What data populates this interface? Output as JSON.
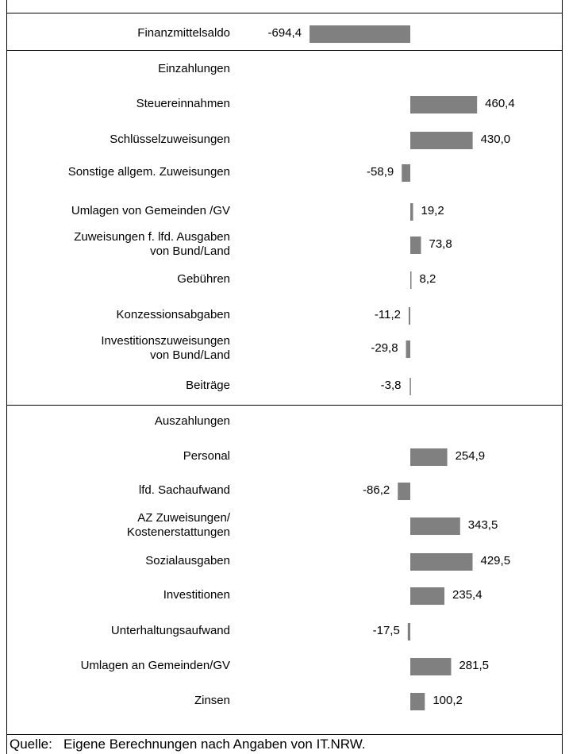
{
  "chart_data": {
    "type": "bar",
    "orientation": "horizontal",
    "color": "#808080",
    "categories": [
      "Finanzmittelsaldo",
      "Einzahlungen",
      "Steuereinnahmen",
      "Schlüsselzuweisungen",
      "Sonstige allgem. Zuweisungen",
      "Umlagen von Gemeinden /GV",
      "Zuweisungen f. lfd. Ausgaben\nvon Bund/Land",
      "Gebühren",
      "Konzessionsabgaben",
      "Investitionszuweisungen\nvon Bund/Land",
      "Beiträge",
      "Auszahlungen",
      "Personal",
      "lfd. Sachaufwand",
      "AZ Zuweisungen/\nKostenerstattungen",
      "Sozialausgaben",
      "Investitionen",
      "Unterhaltungsaufwand",
      "Umlagen an Gemeinden/GV",
      "Zinsen"
    ],
    "values": [
      -694.4,
      null,
      460.4,
      430.0,
      -58.9,
      19.2,
      73.8,
      8.2,
      -11.2,
      -29.8,
      -3.8,
      null,
      254.9,
      -86.2,
      343.5,
      429.5,
      235.4,
      -17.5,
      281.5,
      100.2
    ],
    "value_labels": [
      "-694,4",
      null,
      "460,4",
      "430,0",
      "-58,9",
      "19,2",
      "73,8",
      "8,2",
      "-11,2",
      "-29,8",
      "-3,8",
      null,
      "254,9",
      "-86,2",
      "343,5",
      "429,5",
      "235,4",
      "-17,5",
      "281,5",
      "100,2"
    ],
    "source": "Quelle:   Eigene Berechnungen nach Angaben von IT.NRW."
  }
}
